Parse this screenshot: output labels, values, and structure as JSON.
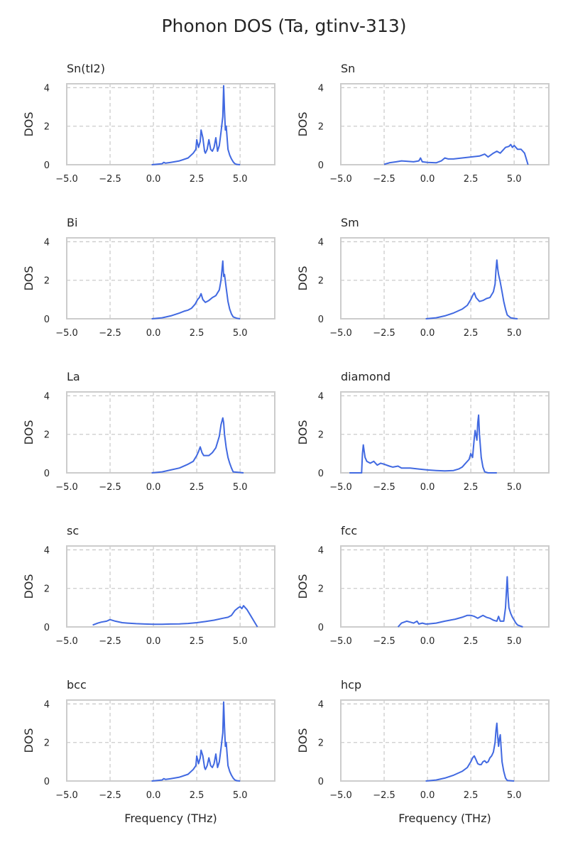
{
  "figure": {
    "title": "Phonon DOS (Ta, gtinv-313)",
    "xlabel": "Frequency (THz)",
    "ylabel": "DOS",
    "line_color": "#4169e1",
    "grid_color": "#cccccc"
  },
  "chart_data": [
    {
      "type": "line",
      "title": "Sn(tI2)",
      "xlabel": "",
      "ylabel": "DOS",
      "xlim": [
        -5,
        7
      ],
      "ylim": [
        0,
        4.2
      ],
      "xticks": [
        -5,
        -2.5,
        0,
        2.5,
        5
      ],
      "xtick_labels": [
        "−5.0",
        "−2.5",
        "0.0",
        "2.5",
        "5.0"
      ],
      "yticks": [
        0,
        2,
        4
      ],
      "ytick_labels": [
        "0",
        "2",
        "4"
      ],
      "grid": true,
      "x": [
        -0.1,
        0.5,
        0.6,
        0.7,
        1.0,
        1.5,
        2.0,
        2.3,
        2.45,
        2.5,
        2.6,
        2.7,
        2.75,
        2.85,
        2.95,
        3.0,
        3.1,
        3.2,
        3.3,
        3.4,
        3.5,
        3.6,
        3.7,
        3.8,
        3.9,
        4.0,
        4.05,
        4.1,
        4.15,
        4.2,
        4.3,
        4.4,
        4.5,
        4.6,
        4.7,
        4.8,
        5.0
      ],
      "y": [
        0,
        0.05,
        0.12,
        0.08,
        0.12,
        0.2,
        0.35,
        0.6,
        0.8,
        1.3,
        0.9,
        1.2,
        1.8,
        1.4,
        0.7,
        0.6,
        0.8,
        1.3,
        0.8,
        0.7,
        0.9,
        1.4,
        0.7,
        1.0,
        1.7,
        2.5,
        4.1,
        2.8,
        1.8,
        2.0,
        0.8,
        0.5,
        0.3,
        0.15,
        0.05,
        0.02,
        0
      ]
    },
    {
      "type": "line",
      "title": "Sn",
      "xlabel": "",
      "ylabel": "DOS",
      "xlim": [
        -5,
        7
      ],
      "ylim": [
        0,
        4.2
      ],
      "xticks": [
        -5,
        -2.5,
        0,
        2.5,
        5
      ],
      "xtick_labels": [
        "−5.0",
        "−2.5",
        "0.0",
        "2.5",
        "5.0"
      ],
      "yticks": [
        0,
        2,
        4
      ],
      "ytick_labels": [
        "0",
        "2",
        "4"
      ],
      "grid": true,
      "x": [
        -2.5,
        -2.2,
        -1.8,
        -1.5,
        -1.2,
        -0.8,
        -0.5,
        -0.4,
        -0.3,
        0.0,
        0.5,
        0.8,
        1.0,
        1.2,
        1.5,
        2.0,
        2.5,
        3.0,
        3.3,
        3.5,
        3.8,
        4.0,
        4.2,
        4.5,
        4.7,
        4.8,
        4.9,
        5.0,
        5.2,
        5.4,
        5.5,
        5.6,
        5.7,
        5.8
      ],
      "y": [
        0.02,
        0.1,
        0.15,
        0.2,
        0.18,
        0.15,
        0.2,
        0.35,
        0.15,
        0.12,
        0.1,
        0.2,
        0.35,
        0.3,
        0.3,
        0.35,
        0.4,
        0.45,
        0.55,
        0.4,
        0.6,
        0.7,
        0.6,
        0.9,
        0.95,
        1.05,
        0.9,
        1.0,
        0.8,
        0.8,
        0.7,
        0.6,
        0.3,
        0
      ]
    },
    {
      "type": "line",
      "title": "Bi",
      "xlabel": "",
      "ylabel": "DOS",
      "xlim": [
        -5,
        7
      ],
      "ylim": [
        0,
        4.2
      ],
      "xticks": [
        -5,
        -2.5,
        0,
        2.5,
        5
      ],
      "xtick_labels": [
        "−5.0",
        "−2.5",
        "0.0",
        "2.5",
        "5.0"
      ],
      "yticks": [
        0,
        2,
        4
      ],
      "ytick_labels": [
        "0",
        "2",
        "4"
      ],
      "grid": true,
      "x": [
        -0.1,
        0.5,
        1.0,
        1.5,
        1.8,
        2.0,
        2.2,
        2.4,
        2.55,
        2.65,
        2.75,
        2.85,
        3.0,
        3.2,
        3.4,
        3.6,
        3.8,
        3.9,
        4.0,
        4.05,
        4.1,
        4.2,
        4.3,
        4.4,
        4.5,
        4.6,
        4.8,
        5.0
      ],
      "y": [
        0,
        0.05,
        0.15,
        0.3,
        0.4,
        0.45,
        0.55,
        0.75,
        1.0,
        1.1,
        1.3,
        1.0,
        0.85,
        0.95,
        1.1,
        1.2,
        1.5,
        2.0,
        3.0,
        2.2,
        2.3,
        1.6,
        0.9,
        0.5,
        0.25,
        0.1,
        0.03,
        0
      ]
    },
    {
      "type": "line",
      "title": "Sm",
      "xlabel": "",
      "ylabel": "DOS",
      "xlim": [
        -5,
        7
      ],
      "ylim": [
        0,
        4.2
      ],
      "xticks": [
        -5,
        -2.5,
        0,
        2.5,
        5
      ],
      "xtick_labels": [
        "−5.0",
        "−2.5",
        "0.0",
        "2.5",
        "5.0"
      ],
      "yticks": [
        0,
        2,
        4
      ],
      "ytick_labels": [
        "0",
        "2",
        "4"
      ],
      "grid": true,
      "x": [
        -0.1,
        0.5,
        1.0,
        1.5,
        2.0,
        2.3,
        2.5,
        2.6,
        2.7,
        2.8,
        2.9,
        3.0,
        3.2,
        3.4,
        3.6,
        3.8,
        3.9,
        3.95,
        4.0,
        4.05,
        4.1,
        4.2,
        4.3,
        4.4,
        4.5,
        4.6,
        4.8,
        5.0,
        5.2
      ],
      "y": [
        0,
        0.05,
        0.15,
        0.3,
        0.5,
        0.7,
        1.0,
        1.2,
        1.35,
        1.1,
        1.0,
        0.9,
        0.95,
        1.05,
        1.1,
        1.4,
        1.8,
        2.5,
        3.05,
        2.6,
        2.3,
        1.9,
        1.4,
        0.9,
        0.5,
        0.2,
        0.05,
        0.02,
        0
      ]
    },
    {
      "type": "line",
      "title": "La",
      "xlabel": "",
      "ylabel": "DOS",
      "xlim": [
        -5,
        7
      ],
      "ylim": [
        0,
        4.2
      ],
      "xticks": [
        -5,
        -2.5,
        0,
        2.5,
        5
      ],
      "xtick_labels": [
        "−5.0",
        "−2.5",
        "0.0",
        "2.5",
        "5.0"
      ],
      "yticks": [
        0,
        2,
        4
      ],
      "ytick_labels": [
        "0",
        "2",
        "4"
      ],
      "grid": true,
      "x": [
        -0.1,
        0.5,
        1.0,
        1.5,
        2.0,
        2.3,
        2.5,
        2.6,
        2.7,
        2.8,
        2.9,
        3.0,
        3.2,
        3.4,
        3.6,
        3.8,
        3.9,
        4.0,
        4.05,
        4.1,
        4.2,
        4.3,
        4.4,
        4.5,
        4.6,
        5.0,
        5.2
      ],
      "y": [
        0,
        0.05,
        0.15,
        0.25,
        0.45,
        0.6,
        0.9,
        1.1,
        1.35,
        1.05,
        0.9,
        0.9,
        0.9,
        1.05,
        1.3,
        1.9,
        2.5,
        2.85,
        2.6,
        2.0,
        1.3,
        0.8,
        0.5,
        0.25,
        0.05,
        0.02,
        0
      ]
    },
    {
      "type": "line",
      "title": "diamond",
      "xlabel": "",
      "ylabel": "DOS",
      "xlim": [
        -5,
        7
      ],
      "ylim": [
        0,
        4.2
      ],
      "xticks": [
        -5,
        -2.5,
        0,
        2.5,
        5
      ],
      "xtick_labels": [
        "−5.0",
        "−2.5",
        "0.0",
        "2.5",
        "5.0"
      ],
      "yticks": [
        0,
        2,
        4
      ],
      "ytick_labels": [
        "0",
        "2",
        "4"
      ],
      "grid": true,
      "x": [
        -4.5,
        -3.8,
        -3.75,
        -3.7,
        -3.65,
        -3.6,
        -3.5,
        -3.3,
        -3.1,
        -2.9,
        -2.7,
        -2.5,
        -2.2,
        -2.0,
        -1.7,
        -1.5,
        -1.0,
        -0.5,
        0.0,
        0.5,
        1.0,
        1.5,
        1.8,
        2.0,
        2.2,
        2.4,
        2.5,
        2.6,
        2.65,
        2.7,
        2.75,
        2.85,
        2.9,
        2.95,
        3.0,
        3.1,
        3.2,
        3.3,
        3.5,
        4.0
      ],
      "y": [
        0,
        0,
        1.0,
        1.45,
        1.1,
        0.8,
        0.6,
        0.5,
        0.6,
        0.4,
        0.5,
        0.45,
        0.35,
        0.3,
        0.35,
        0.25,
        0.25,
        0.2,
        0.15,
        0.12,
        0.1,
        0.12,
        0.2,
        0.3,
        0.5,
        0.7,
        1.0,
        0.8,
        1.3,
        1.8,
        2.2,
        1.7,
        2.6,
        3.0,
        2.0,
        0.8,
        0.3,
        0.05,
        0,
        0
      ]
    },
    {
      "type": "line",
      "title": "sc",
      "xlabel": "",
      "ylabel": "DOS",
      "xlim": [
        -5,
        7
      ],
      "ylim": [
        0,
        4.2
      ],
      "xticks": [
        -5,
        -2.5,
        0,
        2.5,
        5
      ],
      "xtick_labels": [
        "−5.0",
        "−2.5",
        "0.0",
        "2.5",
        "5.0"
      ],
      "yticks": [
        0,
        2,
        4
      ],
      "ytick_labels": [
        "0",
        "2",
        "4"
      ],
      "grid": true,
      "x": [
        -3.5,
        -3.2,
        -3.0,
        -2.7,
        -2.5,
        -2.2,
        -1.8,
        -1.5,
        -1.0,
        -0.5,
        0.0,
        0.5,
        1.0,
        1.5,
        2.0,
        2.5,
        3.0,
        3.5,
        4.0,
        4.3,
        4.5,
        4.7,
        4.9,
        5.0,
        5.1,
        5.2,
        5.3,
        5.4,
        5.6,
        5.8,
        5.9,
        6.0
      ],
      "y": [
        0.1,
        0.2,
        0.25,
        0.3,
        0.38,
        0.3,
        0.22,
        0.2,
        0.17,
        0.15,
        0.14,
        0.14,
        0.15,
        0.16,
        0.18,
        0.22,
        0.28,
        0.35,
        0.45,
        0.5,
        0.6,
        0.85,
        1.0,
        1.05,
        0.95,
        1.1,
        1.0,
        0.9,
        0.6,
        0.3,
        0.15,
        0
      ]
    },
    {
      "type": "line",
      "title": "fcc",
      "xlabel": "",
      "ylabel": "DOS",
      "xlim": [
        -5,
        7
      ],
      "ylim": [
        0,
        4.2
      ],
      "xticks": [
        -5,
        -2.5,
        0,
        2.5,
        5
      ],
      "xtick_labels": [
        "−5.0",
        "−2.5",
        "0.0",
        "2.5",
        "5.0"
      ],
      "yticks": [
        0,
        2,
        4
      ],
      "ytick_labels": [
        "0",
        "2",
        "4"
      ],
      "grid": true,
      "x": [
        -1.7,
        -1.5,
        -1.2,
        -1.0,
        -0.8,
        -0.6,
        -0.5,
        -0.3,
        -0.1,
        0.0,
        0.5,
        1.0,
        1.3,
        1.6,
        2.0,
        2.3,
        2.5,
        2.7,
        2.9,
        3.0,
        3.2,
        3.4,
        3.6,
        3.8,
        4.0,
        4.1,
        4.2,
        4.3,
        4.4,
        4.5,
        4.55,
        4.6,
        4.65,
        4.7,
        4.8,
        4.9,
        5.0,
        5.1,
        5.2,
        5.5
      ],
      "y": [
        0,
        0.2,
        0.3,
        0.25,
        0.2,
        0.3,
        0.15,
        0.2,
        0.15,
        0.15,
        0.2,
        0.3,
        0.35,
        0.4,
        0.5,
        0.6,
        0.6,
        0.55,
        0.45,
        0.5,
        0.6,
        0.5,
        0.45,
        0.35,
        0.3,
        0.55,
        0.3,
        0.3,
        0.3,
        1.0,
        1.8,
        2.6,
        1.6,
        1.0,
        0.7,
        0.5,
        0.35,
        0.2,
        0.1,
        0
      ]
    },
    {
      "type": "line",
      "title": "bcc",
      "xlabel": "Frequency (THz)",
      "ylabel": "DOS",
      "xlim": [
        -5,
        7
      ],
      "ylim": [
        0,
        4.2
      ],
      "xticks": [
        -5,
        -2.5,
        0,
        2.5,
        5
      ],
      "xtick_labels": [
        "−5.0",
        "−2.5",
        "0.0",
        "2.5",
        "5.0"
      ],
      "yticks": [
        0,
        2,
        4
      ],
      "ytick_labels": [
        "0",
        "2",
        "4"
      ],
      "grid": true,
      "x": [
        -0.1,
        0.5,
        0.6,
        0.7,
        1.0,
        1.5,
        2.0,
        2.3,
        2.45,
        2.5,
        2.6,
        2.7,
        2.75,
        2.85,
        2.95,
        3.0,
        3.1,
        3.2,
        3.3,
        3.4,
        3.5,
        3.6,
        3.7,
        3.8,
        3.9,
        4.0,
        4.05,
        4.1,
        4.15,
        4.2,
        4.3,
        4.4,
        4.5,
        4.6,
        4.7,
        4.8,
        5.0
      ],
      "y": [
        0,
        0.05,
        0.12,
        0.08,
        0.12,
        0.2,
        0.35,
        0.6,
        0.8,
        1.3,
        0.9,
        1.2,
        1.6,
        1.3,
        0.7,
        0.6,
        0.8,
        1.2,
        0.8,
        0.7,
        0.9,
        1.4,
        0.7,
        1.0,
        1.7,
        2.5,
        4.1,
        2.8,
        1.8,
        2.0,
        0.8,
        0.5,
        0.3,
        0.15,
        0.05,
        0.02,
        0
      ]
    },
    {
      "type": "line",
      "title": "hcp",
      "xlabel": "Frequency (THz)",
      "ylabel": "DOS",
      "xlim": [
        -5,
        7
      ],
      "ylim": [
        0,
        4.2
      ],
      "xticks": [
        -5,
        -2.5,
        0,
        2.5,
        5
      ],
      "xtick_labels": [
        "−5.0",
        "−2.5",
        "0.0",
        "2.5",
        "5.0"
      ],
      "yticks": [
        0,
        2,
        4
      ],
      "ytick_labels": [
        "0",
        "2",
        "4"
      ],
      "grid": true,
      "x": [
        -0.1,
        0.5,
        1.0,
        1.5,
        2.0,
        2.3,
        2.5,
        2.6,
        2.7,
        2.8,
        2.9,
        3.0,
        3.1,
        3.2,
        3.3,
        3.4,
        3.5,
        3.6,
        3.7,
        3.8,
        3.9,
        3.95,
        4.0,
        4.05,
        4.1,
        4.15,
        4.2,
        4.3,
        4.4,
        4.5,
        4.6,
        5.0
      ],
      "y": [
        0,
        0.05,
        0.15,
        0.3,
        0.5,
        0.7,
        1.0,
        1.2,
        1.3,
        1.1,
        0.9,
        0.85,
        0.85,
        1.0,
        1.05,
        0.95,
        1.0,
        1.2,
        1.3,
        1.5,
        2.0,
        2.6,
        3.0,
        2.3,
        1.8,
        2.2,
        2.4,
        1.0,
        0.5,
        0.15,
        0.03,
        0
      ]
    }
  ]
}
